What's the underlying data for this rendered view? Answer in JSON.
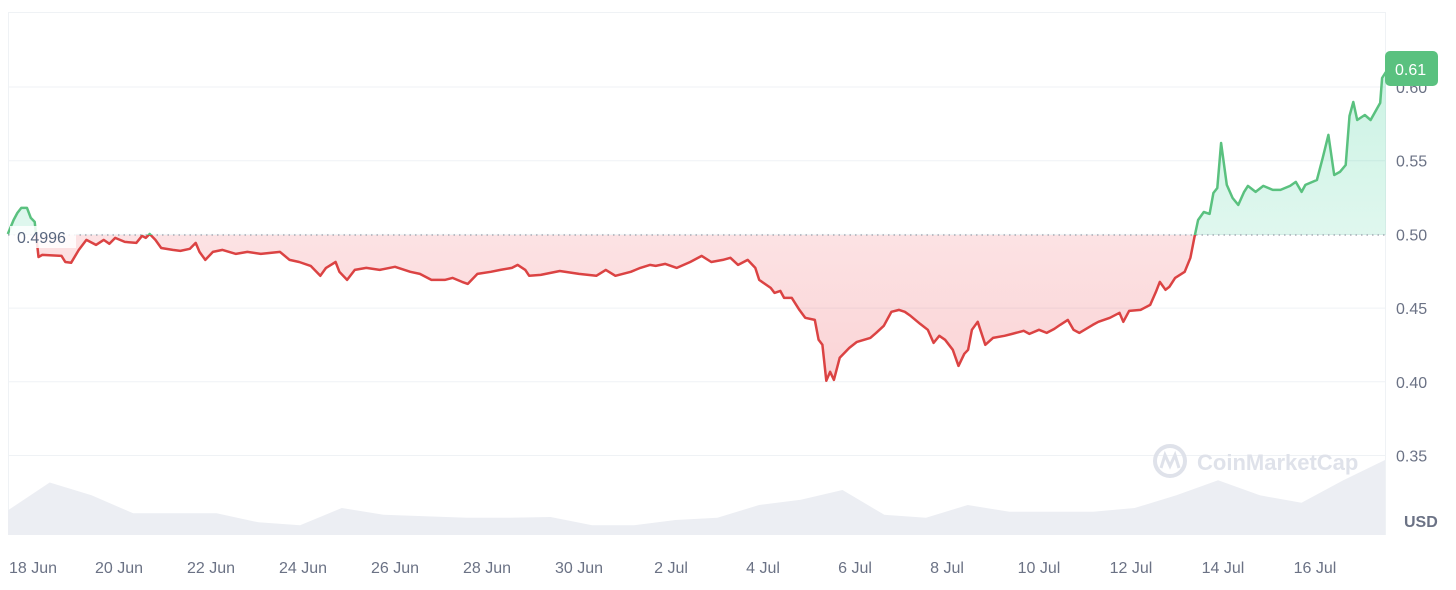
{
  "chart_data": {
    "type": "line",
    "title": "",
    "xlabel": "",
    "ylabel": "",
    "currency_label": "USD",
    "watermark": "CoinMarketCap",
    "reference_value": 0.4996,
    "reference_label": "0.4996",
    "current_price_label": "0.61",
    "ylim": [
      0.325,
      0.65
    ],
    "y_ticks": [
      {
        "value": 0.6,
        "label": "0.60"
      },
      {
        "value": 0.55,
        "label": "0.55"
      },
      {
        "value": 0.5,
        "label": "0.50"
      },
      {
        "value": 0.45,
        "label": "0.45"
      },
      {
        "value": 0.4,
        "label": "0.40"
      },
      {
        "value": 0.35,
        "label": "0.35"
      }
    ],
    "x_ticks": [
      "18 Jun",
      "20 Jun",
      "22 Jun",
      "24 Jun",
      "26 Jun",
      "28 Jun",
      "30 Jun",
      "2 Jul",
      "4 Jul",
      "6 Jul",
      "8 Jul",
      "10 Jul",
      "12 Jul",
      "14 Jul",
      "16 Jul"
    ],
    "grid": "horizontal",
    "colors": {
      "up": "#16c784",
      "up_line": "#5ac17f",
      "down": "#db4343",
      "grid": "#eff2f5",
      "axis_text": "#6b7285",
      "volume": "#eceef3"
    },
    "series": [
      {
        "points": [
          [
            "Jun 17 14:00",
            0.5003
          ],
          [
            "Jun 17 17:00",
            0.5098
          ],
          [
            "Jun 17 19:00",
            0.5146
          ],
          [
            "Jun 17 21:00",
            0.518
          ],
          [
            "Jun 18 00:00",
            0.518
          ],
          [
            "Jun 18 02:00",
            0.5112
          ],
          [
            "Jun 18 04:00",
            0.5085
          ],
          [
            "Jun 18 06:00",
            0.4847
          ],
          [
            "Jun 18 08:00",
            0.4861
          ],
          [
            "Jun 18 18:00",
            0.4854
          ],
          [
            "Jun 18 20:00",
            0.4813
          ],
          [
            "Jun 18 23:00",
            0.4807
          ],
          [
            "Jun 19 03:00",
            0.4895
          ],
          [
            "Jun 19 07:00",
            0.4963
          ],
          [
            "Jun 19 12:00",
            0.4929
          ],
          [
            "Jun 19 16:00",
            0.4963
          ],
          [
            "Jun 19 19:00",
            0.4936
          ],
          [
            "Jun 19 22:00",
            0.4976
          ],
          [
            "Jun 20 03:00",
            0.4949
          ],
          [
            "Jun 20 09:00",
            0.4942
          ],
          [
            "Jun 20 12:00",
            0.499
          ],
          [
            "Jun 20 14:00",
            0.4976
          ],
          [
            "Jun 20 16:00",
            0.5003
          ],
          [
            "Jun 20 19:00",
            0.4963
          ],
          [
            "Jun 20 22:00",
            0.4908
          ],
          [
            "Jun 21 04:00",
            0.4895
          ],
          [
            "Jun 21 08:00",
            0.4888
          ],
          [
            "Jun 21 13:00",
            0.4902
          ],
          [
            "Jun 21 16:00",
            0.4942
          ],
          [
            "Jun 21 18:00",
            0.4881
          ],
          [
            "Jun 21 21:00",
            0.4827
          ],
          [
            "Jun 22 01:00",
            0.4881
          ],
          [
            "Jun 22 06:00",
            0.4895
          ],
          [
            "Jun 22 13:00",
            0.4868
          ],
          [
            "Jun 22 19:00",
            0.4881
          ],
          [
            "Jun 23 02:00",
            0.4868
          ],
          [
            "Jun 23 12:00",
            0.4881
          ],
          [
            "Jun 23 17:00",
            0.4827
          ],
          [
            "Jun 23 22:00",
            0.4813
          ],
          [
            "Jun 24 04:00",
            0.4786
          ],
          [
            "Jun 24 09:00",
            0.4719
          ],
          [
            "Jun 24 12:00",
            0.4773
          ],
          [
            "Jun 24 17:00",
            0.4813
          ],
          [
            "Jun 24 19:00",
            0.4746
          ],
          [
            "Jun 24 23:00",
            0.4691
          ],
          [
            "Jun 25 03:00",
            0.4759
          ],
          [
            "Jun 25 09:00",
            0.4773
          ],
          [
            "Jun 25 16:00",
            0.4759
          ],
          [
            "Jun 26 00:00",
            0.478
          ],
          [
            "Jun 26 08:00",
            0.4746
          ],
          [
            "Jun 26 13:00",
            0.4732
          ],
          [
            "Jun 26 19:00",
            0.4691
          ],
          [
            "Jun 27 02:00",
            0.4691
          ],
          [
            "Jun 27 06:00",
            0.4705
          ],
          [
            "Jun 27 11:00",
            0.4678
          ],
          [
            "Jun 27 14:00",
            0.4664
          ],
          [
            "Jun 27 19:00",
            0.4732
          ],
          [
            "Jun 28 02:00",
            0.4746
          ],
          [
            "Jun 28 07:00",
            0.4759
          ],
          [
            "Jun 28 13:00",
            0.4773
          ],
          [
            "Jun 28 16:00",
            0.4793
          ],
          [
            "Jun 28 20:00",
            0.4759
          ],
          [
            "Jun 28 22:00",
            0.4719
          ],
          [
            "Jun 29 04:00",
            0.4725
          ],
          [
            "Jun 29 14:00",
            0.4752
          ],
          [
            "Jun 30 00:00",
            0.4732
          ],
          [
            "Jun 30 09:00",
            0.4719
          ],
          [
            "Jun 30 14:00",
            0.4759
          ],
          [
            "Jun 30 19:00",
            0.4719
          ],
          [
            "Jul 1 03:00",
            0.4746
          ],
          [
            "Jul 1 08:00",
            0.4773
          ],
          [
            "Jul 1 13:00",
            0.4793
          ],
          [
            "Jul 1 16:00",
            0.4786
          ],
          [
            "Jul 1 21:00",
            0.48
          ],
          [
            "Jul 2 03:00",
            0.4773
          ],
          [
            "Jul 2 10:00",
            0.4813
          ],
          [
            "Jul 2 16:00",
            0.4854
          ],
          [
            "Jul 2 21:00",
            0.4813
          ],
          [
            "Jul 3 03:00",
            0.4827
          ],
          [
            "Jul 3 07:00",
            0.4841
          ],
          [
            "Jul 3 11:00",
            0.4793
          ],
          [
            "Jul 3 16:00",
            0.4827
          ],
          [
            "Jul 3 20:00",
            0.4773
          ],
          [
            "Jul 3 22:00",
            0.4691
          ],
          [
            "Jul 4 04:00",
            0.4637
          ],
          [
            "Jul 4 06:00",
            0.4603
          ],
          [
            "Jul 4 09:00",
            0.4617
          ],
          [
            "Jul 4 11:00",
            0.4569
          ],
          [
            "Jul 4 15:00",
            0.4569
          ],
          [
            "Jul 4 19:00",
            0.4488
          ],
          [
            "Jul 4 22:00",
            0.4434
          ],
          [
            "Jul 5 03:00",
            0.442
          ],
          [
            "Jul 5 05:00",
            0.4285
          ],
          [
            "Jul 5 07:00",
            0.4251
          ],
          [
            "Jul 5 09:00",
            0.4007
          ],
          [
            "Jul 5 11:00",
            0.4068
          ],
          [
            "Jul 5 13:00",
            0.4013
          ],
          [
            "Jul 5 16:00",
            0.4163
          ],
          [
            "Jul 5 21:00",
            0.423
          ],
          [
            "Jul 6 01:00",
            0.4271
          ],
          [
            "Jul 6 08:00",
            0.4298
          ],
          [
            "Jul 6 11:00",
            0.4332
          ],
          [
            "Jul 6 15:00",
            0.438
          ],
          [
            "Jul 6 19:00",
            0.4475
          ],
          [
            "Jul 6 23:00",
            0.4488
          ],
          [
            "Jul 7 02:00",
            0.4475
          ],
          [
            "Jul 7 05:00",
            0.4447
          ],
          [
            "Jul 7 10:00",
            0.4393
          ],
          [
            "Jul 7 14:00",
            0.4353
          ],
          [
            "Jul 7 17:00",
            0.4264
          ],
          [
            "Jul 7 20:00",
            0.4312
          ],
          [
            "Jul 7 23:00",
            0.4285
          ],
          [
            "Jul 8 03:00",
            0.4217
          ],
          [
            "Jul 8 06:00",
            0.4108
          ],
          [
            "Jul 8 09:00",
            0.419
          ],
          [
            "Jul 8 11:00",
            0.4217
          ],
          [
            "Jul 8 13:00",
            0.4353
          ],
          [
            "Jul 8 16:00",
            0.4407
          ],
          [
            "Jul 8 20:00",
            0.4251
          ],
          [
            "Jul 9 00:00",
            0.4298
          ],
          [
            "Jul 9 06:00",
            0.4312
          ],
          [
            "Jul 9 10:00",
            0.4325
          ],
          [
            "Jul 9 16:00",
            0.4346
          ],
          [
            "Jul 9 19:00",
            0.4325
          ],
          [
            "Jul 10 00:00",
            0.4353
          ],
          [
            "Jul 10 04:00",
            0.4332
          ],
          [
            "Jul 10 08:00",
            0.4359
          ],
          [
            "Jul 10 11:00",
            0.4386
          ],
          [
            "Jul 10 15:00",
            0.442
          ],
          [
            "Jul 10 18:00",
            0.4353
          ],
          [
            "Jul 10 21:00",
            0.4332
          ],
          [
            "Jul 11 04:00",
            0.4386
          ],
          [
            "Jul 11 07:00",
            0.4407
          ],
          [
            "Jul 11 13:00",
            0.4434
          ],
          [
            "Jul 11 18:00",
            0.4468
          ],
          [
            "Jul 11 20:00",
            0.4407
          ],
          [
            "Jul 11 23:00",
            0.4481
          ],
          [
            "Jul 12 05:00",
            0.4488
          ],
          [
            "Jul 12 10:00",
            0.4522
          ],
          [
            "Jul 12 13:00",
            0.461
          ],
          [
            "Jul 12 15:00",
            0.4678
          ],
          [
            "Jul 12 18:00",
            0.4624
          ],
          [
            "Jul 12 20:00",
            0.4644
          ],
          [
            "Jul 12 23:00",
            0.4705
          ],
          [
            "Jul 13 04:00",
            0.4746
          ],
          [
            "Jul 13 07:00",
            0.4841
          ],
          [
            "Jul 13 09:00",
            0.4976
          ],
          [
            "Jul 13 11:00",
            0.5098
          ],
          [
            "Jul 13 14:00",
            0.5152
          ],
          [
            "Jul 13 17:00",
            0.5139
          ],
          [
            "Jul 13 19:00",
            0.5281
          ],
          [
            "Jul 13 21:00",
            0.5315
          ],
          [
            "Jul 13 23:00",
            0.562
          ],
          [
            "Jul 14 02:00",
            0.5336
          ],
          [
            "Jul 14 05:00",
            0.5247
          ],
          [
            "Jul 14 08:00",
            0.52
          ],
          [
            "Jul 14 11:00",
            0.5288
          ],
          [
            "Jul 14 13:00",
            0.5329
          ],
          [
            "Jul 14 17:00",
            0.5288
          ],
          [
            "Jul 14 21:00",
            0.5329
          ],
          [
            "Jul 15 02:00",
            0.5302
          ],
          [
            "Jul 15 06:00",
            0.5302
          ],
          [
            "Jul 15 11:00",
            0.5329
          ],
          [
            "Jul 15 14:00",
            0.5356
          ],
          [
            "Jul 15 17:00",
            0.5288
          ],
          [
            "Jul 15 19:00",
            0.5336
          ],
          [
            "Jul 16 01:00",
            0.5369
          ],
          [
            "Jul 16 04:00",
            0.5519
          ],
          [
            "Jul 16 07:00",
            0.5675
          ],
          [
            "Jul 16 10:00",
            0.5403
          ],
          [
            "Jul 16 13:00",
            0.5424
          ],
          [
            "Jul 16 16:00",
            0.5471
          ],
          [
            "Jul 16 18:00",
            0.5803
          ],
          [
            "Jul 16 20:00",
            0.5898
          ],
          [
            "Jul 16 22:00",
            0.5776
          ],
          [
            "Jul 17 02:00",
            0.581
          ],
          [
            "Jul 17 05:00",
            0.5776
          ],
          [
            "Jul 17 10:00",
            0.5892
          ],
          [
            "Jul 17 11:00",
            0.6061
          ],
          [
            "Jul 17 13:00",
            0.6102
          ]
        ]
      }
    ],
    "volume_relative": [
      0.33,
      0.7,
      0.53,
      0.29,
      0.29,
      0.29,
      0.17,
      0.13,
      0.36,
      0.27,
      0.25,
      0.23,
      0.23,
      0.24,
      0.13,
      0.13,
      0.2,
      0.23,
      0.4,
      0.47,
      0.6,
      0.27,
      0.23,
      0.4,
      0.31,
      0.31,
      0.31,
      0.36,
      0.53,
      0.73,
      0.53,
      0.43,
      0.73,
      1.0
    ]
  }
}
